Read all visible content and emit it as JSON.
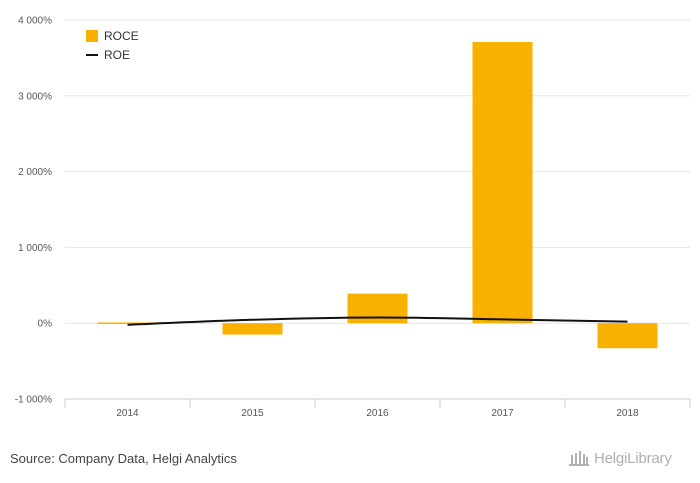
{
  "chart_data": {
    "type": "bar",
    "categories": [
      "2014",
      "2015",
      "2016",
      "2017",
      "2018"
    ],
    "series": [
      {
        "name": "ROCE",
        "kind": "bar",
        "color": "#f9b100",
        "values": [
          10,
          -150,
          390,
          3710,
          -330
        ]
      },
      {
        "name": "ROE",
        "kind": "line",
        "color": "#111111",
        "values": [
          -20,
          45,
          75,
          50,
          20
        ]
      }
    ],
    "ylim": [
      -1000,
      4000
    ],
    "yticks": [
      -1000,
      0,
      1000,
      2000,
      3000,
      4000
    ],
    "ytick_labels": [
      "-1 000%",
      "0%",
      "1 000%",
      "2 000%",
      "3 000%",
      "4 000%"
    ],
    "legend": {
      "placement": "top-left",
      "entries": [
        "ROCE",
        "ROE"
      ]
    },
    "grid": true
  },
  "footer": {
    "source": "Source: Company Data, Helgi Analytics",
    "logo_text": "HelgiLibrary"
  }
}
